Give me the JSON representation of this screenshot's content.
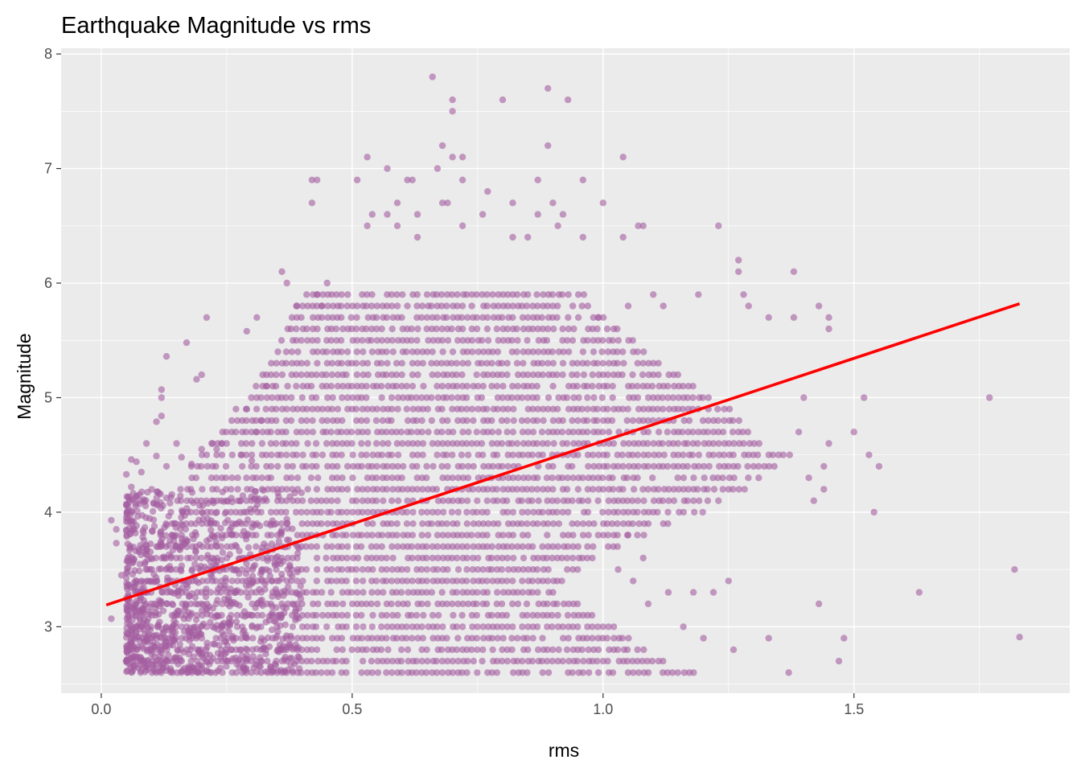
{
  "chart_data": {
    "type": "scatter",
    "title": "Earthquake Magnitude vs rms",
    "xlabel": "rms",
    "ylabel": "Magnitude",
    "xlim": [
      -0.08,
      1.93
    ],
    "ylim": [
      2.42,
      8.05
    ],
    "x_ticks": [
      0.0,
      0.5,
      1.0,
      1.5
    ],
    "x_tick_labels": [
      "0.0",
      "0.5",
      "1.0",
      "1.5"
    ],
    "y_ticks": [
      3,
      4,
      5,
      6,
      7,
      8
    ],
    "y_tick_labels": [
      "3",
      "4",
      "5",
      "6",
      "7",
      "8"
    ],
    "grid": true,
    "legend": "none",
    "colors": {
      "panel_background": "#ebebeb",
      "grid_line": "#ffffff",
      "point": "#a45ea0",
      "trend_line": "#ff0000"
    },
    "point_opacity": 0.6,
    "trend_line": {
      "x": [
        0.01,
        1.83
      ],
      "y": [
        3.19,
        5.82
      ]
    },
    "points": [
      [
        0.66,
        7.8
      ],
      [
        0.89,
        7.7
      ],
      [
        0.7,
        7.6
      ],
      [
        0.8,
        7.6
      ],
      [
        0.93,
        7.6
      ],
      [
        0.7,
        7.5
      ],
      [
        0.89,
        7.2
      ],
      [
        0.68,
        7.2
      ],
      [
        0.7,
        7.1
      ],
      [
        0.72,
        7.1
      ],
      [
        0.53,
        7.1
      ],
      [
        1.04,
        7.1
      ],
      [
        0.57,
        7.0
      ],
      [
        0.67,
        7.0
      ],
      [
        0.43,
        6.9
      ],
      [
        0.51,
        6.9
      ],
      [
        0.61,
        6.9
      ],
      [
        0.62,
        6.9
      ],
      [
        0.72,
        6.9
      ],
      [
        0.87,
        6.9
      ],
      [
        0.96,
        6.9
      ],
      [
        0.77,
        6.8
      ],
      [
        0.42,
        6.9
      ],
      [
        0.42,
        6.7
      ],
      [
        0.68,
        6.7
      ],
      [
        0.69,
        6.7
      ],
      [
        0.82,
        6.7
      ],
      [
        0.9,
        6.7
      ],
      [
        1.0,
        6.7
      ],
      [
        0.59,
        6.7
      ],
      [
        0.54,
        6.6
      ],
      [
        0.57,
        6.6
      ],
      [
        0.63,
        6.6
      ],
      [
        0.76,
        6.6
      ],
      [
        0.87,
        6.6
      ],
      [
        0.92,
        6.6
      ],
      [
        0.53,
        6.5
      ],
      [
        0.59,
        6.5
      ],
      [
        0.72,
        6.5
      ],
      [
        0.91,
        6.5
      ],
      [
        1.07,
        6.5
      ],
      [
        1.08,
        6.5
      ],
      [
        1.23,
        6.5
      ],
      [
        1.04,
        6.4
      ],
      [
        0.63,
        6.4
      ],
      [
        0.82,
        6.4
      ],
      [
        0.85,
        6.4
      ],
      [
        0.96,
        6.4
      ],
      [
        1.27,
        6.2
      ],
      [
        1.27,
        6.1
      ],
      [
        1.38,
        6.1
      ],
      [
        0.36,
        6.1
      ],
      [
        0.37,
        6.0
      ],
      [
        0.45,
        6.0
      ],
      [
        1.1,
        5.9
      ],
      [
        1.19,
        5.9
      ],
      [
        1.28,
        5.9
      ],
      [
        1.38,
        5.7
      ],
      [
        1.43,
        5.8
      ],
      [
        1.45,
        5.7
      ],
      [
        0.43,
        5.9
      ],
      [
        0.44,
        5.8
      ],
      [
        0.39,
        5.8
      ],
      [
        0.38,
        5.7
      ],
      [
        0.31,
        5.7
      ],
      [
        0.21,
        5.7
      ],
      [
        1.29,
        5.8
      ],
      [
        1.33,
        5.7
      ],
      [
        1.45,
        5.6
      ],
      [
        1.12,
        5.8
      ],
      [
        1.05,
        5.8
      ],
      [
        0.99,
        5.7
      ],
      [
        0.17,
        5.48
      ],
      [
        0.13,
        5.36
      ],
      [
        0.29,
        5.58
      ],
      [
        0.2,
        5.2
      ],
      [
        0.19,
        5.16
      ],
      [
        0.12,
        5.07
      ],
      [
        0.12,
        5.0
      ],
      [
        0.12,
        4.84
      ],
      [
        0.11,
        4.79
      ],
      [
        1.77,
        5.0
      ],
      [
        1.52,
        5.0
      ],
      [
        1.5,
        4.7
      ],
      [
        1.53,
        4.5
      ],
      [
        1.55,
        4.4
      ],
      [
        1.54,
        4.0
      ],
      [
        1.45,
        4.6
      ],
      [
        1.43,
        3.2
      ],
      [
        1.48,
        2.9
      ],
      [
        1.47,
        2.7
      ],
      [
        1.63,
        3.3
      ],
      [
        1.82,
        3.5
      ],
      [
        1.83,
        2.91
      ],
      [
        1.37,
        2.6
      ],
      [
        1.33,
        2.9
      ],
      [
        1.4,
        5.0
      ],
      [
        1.39,
        4.7
      ],
      [
        1.44,
        4.2
      ],
      [
        1.41,
        4.3
      ],
      [
        1.44,
        4.4
      ],
      [
        1.42,
        4.1
      ],
      [
        1.25,
        3.4
      ],
      [
        1.22,
        3.3
      ],
      [
        1.18,
        3.3
      ],
      [
        1.13,
        3.3
      ],
      [
        1.09,
        3.2
      ],
      [
        1.06,
        3.4
      ],
      [
        1.08,
        3.6
      ],
      [
        1.05,
        3.8
      ],
      [
        1.03,
        3.5
      ],
      [
        1.16,
        3.0
      ],
      [
        1.2,
        2.9
      ],
      [
        1.26,
        2.8
      ],
      [
        0.02,
        3.93
      ],
      [
        0.03,
        3.85
      ],
      [
        0.03,
        3.73
      ],
      [
        0.02,
        3.07
      ],
      [
        0.04,
        3.45
      ],
      [
        0.05,
        3.95
      ],
      [
        0.06,
        4.46
      ],
      [
        0.07,
        4.44
      ],
      [
        0.05,
        4.33
      ],
      [
        0.06,
        4.22
      ],
      [
        0.08,
        4.35
      ],
      [
        0.09,
        4.6
      ],
      [
        0.11,
        4.49
      ],
      [
        0.13,
        4.4
      ],
      [
        0.15,
        4.6
      ],
      [
        0.16,
        4.48
      ],
      [
        0.18,
        4.42
      ],
      [
        0.2,
        4.55
      ],
      [
        0.22,
        4.6
      ],
      [
        0.26,
        4.8
      ],
      [
        0.29,
        4.9
      ],
      [
        0.32,
        4.8
      ],
      [
        0.34,
        4.9
      ],
      [
        0.33,
        5.1
      ],
      [
        0.26,
        4.7
      ],
      [
        0.24,
        4.6
      ],
      [
        0.23,
        4.55
      ],
      [
        0.28,
        4.5
      ],
      [
        0.3,
        4.45
      ],
      [
        0.31,
        4.7
      ]
    ],
    "band_rows": [
      {
        "y": 5.9,
        "x_range": [
          0.41,
          0.96
        ]
      },
      {
        "y": 5.8,
        "x_range": [
          0.39,
          0.98
        ]
      },
      {
        "y": 5.7,
        "x_range": [
          0.38,
          1.0
        ]
      },
      {
        "y": 5.6,
        "x_range": [
          0.37,
          1.03
        ]
      },
      {
        "y": 5.5,
        "x_range": [
          0.36,
          1.06
        ]
      },
      {
        "y": 5.4,
        "x_range": [
          0.35,
          1.08
        ]
      },
      {
        "y": 5.3,
        "x_range": [
          0.34,
          1.11
        ]
      },
      {
        "y": 5.2,
        "x_range": [
          0.32,
          1.15
        ]
      },
      {
        "y": 5.1,
        "x_range": [
          0.31,
          1.18
        ]
      },
      {
        "y": 5.0,
        "x_range": [
          0.29,
          1.22
        ]
      },
      {
        "y": 4.9,
        "x_range": [
          0.27,
          1.25
        ]
      },
      {
        "y": 4.8,
        "x_range": [
          0.26,
          1.27
        ]
      },
      {
        "y": 4.7,
        "x_range": [
          0.24,
          1.29
        ]
      },
      {
        "y": 4.6,
        "x_range": [
          0.22,
          1.31
        ]
      },
      {
        "y": 4.5,
        "x_range": [
          0.2,
          1.37
        ]
      },
      {
        "y": 4.4,
        "x_range": [
          0.18,
          1.34
        ]
      },
      {
        "y": 4.3,
        "x_range": [
          0.17,
          1.31
        ]
      },
      {
        "y": 4.2,
        "x_range": [
          0.16,
          1.28
        ]
      },
      {
        "y": 4.1,
        "x_range": [
          0.15,
          1.24
        ]
      },
      {
        "y": 4.0,
        "x_range": [
          0.14,
          1.2
        ]
      },
      {
        "y": 3.9,
        "x_range": [
          0.13,
          1.13
        ]
      },
      {
        "y": 3.8,
        "x_range": [
          0.12,
          1.08
        ]
      },
      {
        "y": 3.7,
        "x_range": [
          0.11,
          1.03
        ]
      },
      {
        "y": 3.6,
        "x_range": [
          0.1,
          0.98
        ]
      },
      {
        "y": 3.5,
        "x_range": [
          0.09,
          0.95
        ]
      },
      {
        "y": 3.4,
        "x_range": [
          0.08,
          0.92
        ]
      },
      {
        "y": 3.3,
        "x_range": [
          0.08,
          0.9
        ]
      },
      {
        "y": 3.2,
        "x_range": [
          0.07,
          0.95
        ]
      },
      {
        "y": 3.1,
        "x_range": [
          0.07,
          0.98
        ]
      },
      {
        "y": 3.0,
        "x_range": [
          0.06,
          1.02
        ]
      },
      {
        "y": 2.9,
        "x_range": [
          0.06,
          1.05
        ]
      },
      {
        "y": 2.8,
        "x_range": [
          0.06,
          1.08
        ]
      },
      {
        "y": 2.7,
        "x_range": [
          0.05,
          1.12
        ]
      },
      {
        "y": 2.6,
        "x_range": [
          0.07,
          1.18
        ]
      }
    ],
    "dense_core": {
      "x_range": [
        0.05,
        0.4
      ],
      "y_range": [
        2.6,
        4.2
      ]
    }
  }
}
